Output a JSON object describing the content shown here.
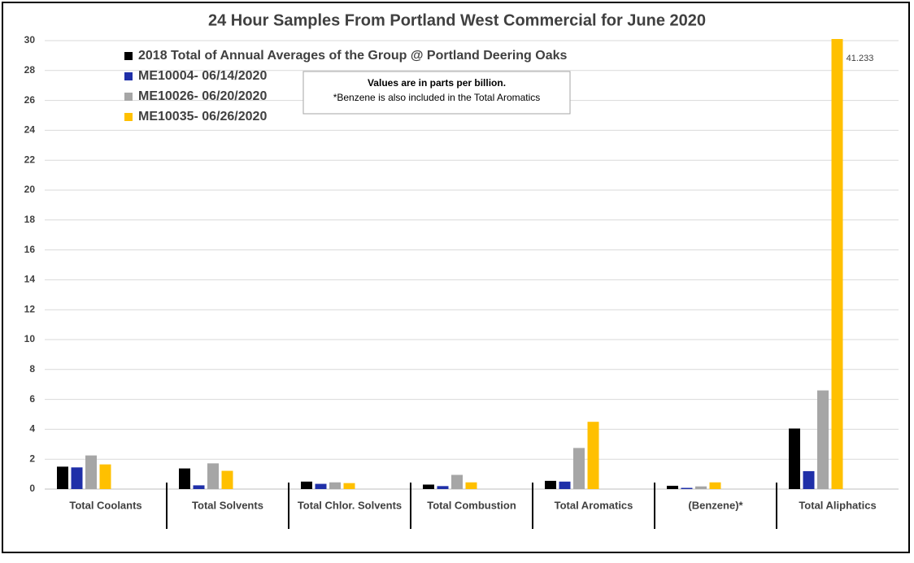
{
  "chart_data": {
    "type": "bar",
    "title": "24 Hour Samples From Portland West Commercial for June 2020",
    "annotation": [
      "Values are in parts per billion.",
      "*Benzene is also included in the Total Aromatics"
    ],
    "categories": [
      "Total Coolants",
      "Total Solvents",
      "Total Chlor. Solvents",
      "Total Combustion",
      "Total Aromatics",
      "(Benzene)*",
      "Total Aliphatics"
    ],
    "series": [
      {
        "name": "2018 Total of Annual Averages of the Group @ Portland Deering Oaks",
        "color": "#000000",
        "values": [
          1.5,
          1.38,
          0.5,
          0.3,
          0.55,
          0.22,
          4.05
        ]
      },
      {
        "name": "ME10004- 06/14/2020",
        "color": "#1f2fa8",
        "values": [
          1.45,
          0.25,
          0.35,
          0.2,
          0.5,
          0.08,
          1.2
        ]
      },
      {
        "name": "ME10026- 06/20/2020",
        "color": "#a6a6a6",
        "values": [
          2.25,
          1.72,
          0.45,
          0.95,
          2.75,
          0.18,
          6.6
        ]
      },
      {
        "name": "ME10035- 06/26/2020",
        "color": "#ffc000",
        "values": [
          1.65,
          1.22,
          0.4,
          0.45,
          4.5,
          0.45,
          41.233
        ],
        "value_labels": [
          null,
          null,
          null,
          null,
          null,
          null,
          "41.233"
        ]
      }
    ],
    "ylim": [
      0,
      30
    ],
    "yticks": [
      0,
      2,
      4,
      6,
      8,
      10,
      12,
      14,
      16,
      18,
      20,
      22,
      24,
      26,
      28,
      30
    ],
    "grid": true,
    "legend": "top-left"
  }
}
